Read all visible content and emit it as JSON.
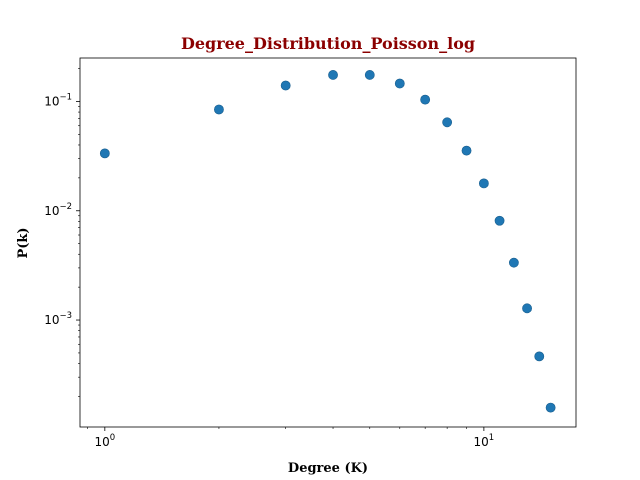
{
  "chart_data": {
    "type": "scatter",
    "title": "Degree_Distribution_Poisson_log",
    "title_color": "#8b0000",
    "xlabel": "Degree (K)",
    "ylabel": "P(k)",
    "x_scale": "log",
    "y_scale": "log",
    "xlim": [
      0.86,
      17.5
    ],
    "ylim": [
      0.000105,
      0.25
    ],
    "grid": false,
    "marker_color": "#1f77b4",
    "x_ticks": [
      {
        "base": "10",
        "exp": "0",
        "value": 1
      },
      {
        "base": "10",
        "exp": "1",
        "value": 10
      }
    ],
    "y_ticks": [
      {
        "base": "10",
        "exp": "−1",
        "value": 0.1
      },
      {
        "base": "10",
        "exp": "−2",
        "value": 0.01
      },
      {
        "base": "10",
        "exp": "−3",
        "value": 0.001
      }
    ],
    "points": [
      {
        "x": 1,
        "y": 0.0335
      },
      {
        "x": 2,
        "y": 0.0845
      },
      {
        "x": 3,
        "y": 0.14
      },
      {
        "x": 4,
        "y": 0.175
      },
      {
        "x": 5,
        "y": 0.175
      },
      {
        "x": 6,
        "y": 0.146
      },
      {
        "x": 7,
        "y": 0.104
      },
      {
        "x": 8,
        "y": 0.0645
      },
      {
        "x": 9,
        "y": 0.0355
      },
      {
        "x": 10,
        "y": 0.0178
      },
      {
        "x": 11,
        "y": 0.0081
      },
      {
        "x": 12,
        "y": 0.00335
      },
      {
        "x": 13,
        "y": 0.00128
      },
      {
        "x": 14,
        "y": 0.000465
      },
      {
        "x": 15,
        "y": 0.000158
      }
    ]
  }
}
